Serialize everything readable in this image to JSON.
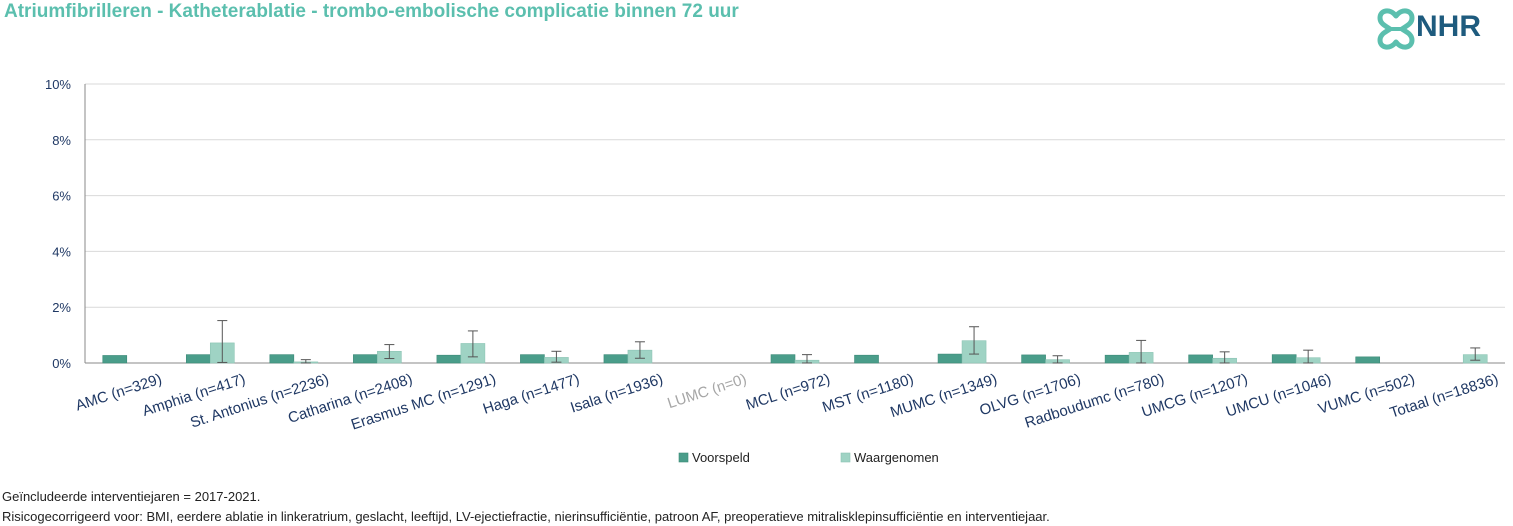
{
  "title": "Atriumfibrilleren - Katheterablatie - trombo-embolische complicatie binnen 72 uur",
  "logo": {
    "text": "NHR",
    "icon": "nhr-heart-knot-icon"
  },
  "footnotes": [
    "Geïncludeerde interventiejaren = 2017-2021.",
    "Risicogecorrigeerd voor: BMI, eerdere ablatie in linkeratrium, geslacht, leeftijd, LV-ejectiefractie, nierinsufficiëntie, patroon AF, preoperatieve mitralisklepinsufficiëntie en interventiejaar."
  ],
  "chart_data": {
    "type": "bar",
    "categories": [
      "AMC (n=329)",
      "Amphia (n=417)",
      "St. Antonius (n=2236)",
      "Catharina (n=2408)",
      "Erasmus MC (n=1291)",
      "Haga (n=1477)",
      "Isala (n=1936)",
      "LUMC (n=0)",
      "MCL (n=972)",
      "MST (n=1180)",
      "MUMC (n=1349)",
      "OLVG (n=1706)",
      "Radboudumc (n=780)",
      "UMCG (n=1207)",
      "UMCU (n=1046)",
      "VUMC (n=502)",
      "Totaal (n=18836)"
    ],
    "greyed_categories": [
      "LUMC (n=0)"
    ],
    "series": [
      {
        "name": "Voorspeld",
        "color": "#4a9d8a",
        "values": [
          0.27,
          0.3,
          0.3,
          0.3,
          0.28,
          0.3,
          0.3,
          null,
          0.3,
          0.28,
          0.32,
          0.29,
          0.28,
          0.29,
          0.3,
          0.22,
          null
        ]
      },
      {
        "name": "Waargenomen",
        "color": "#9fd3c4",
        "values": [
          0.0,
          0.72,
          0.04,
          0.42,
          0.7,
          0.2,
          0.46,
          null,
          0.1,
          0.0,
          0.8,
          0.12,
          0.38,
          0.17,
          0.19,
          0.0,
          0.3
        ],
        "error_upper": [
          null,
          1.52,
          0.12,
          0.66,
          1.15,
          0.42,
          0.76,
          null,
          0.3,
          null,
          1.3,
          0.26,
          0.81,
          0.4,
          0.46,
          null,
          0.54
        ],
        "error_lower": [
          null,
          0.02,
          0.0,
          0.16,
          0.22,
          0.03,
          0.17,
          null,
          0.0,
          null,
          0.32,
          0.0,
          0.0,
          0.0,
          0.0,
          null,
          0.1
        ]
      }
    ],
    "ylim": [
      0,
      10
    ],
    "yticks": [
      "0%",
      "2%",
      "4%",
      "6%",
      "8%",
      "10%"
    ],
    "ytick_values": [
      0,
      2,
      4,
      6,
      8,
      10
    ],
    "grid": true,
    "legend": "bottom-center"
  }
}
